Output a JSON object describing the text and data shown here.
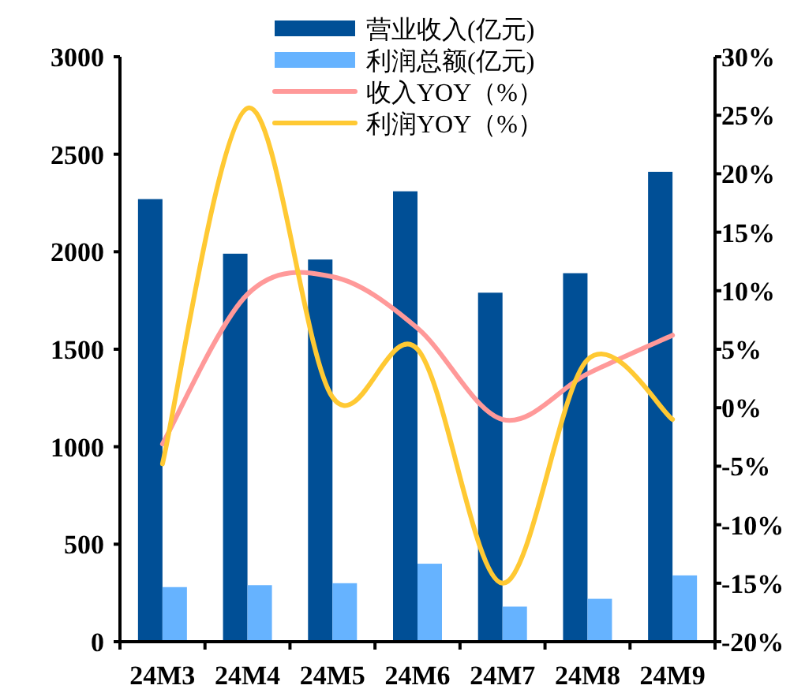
{
  "chart_data": {
    "type": "bar",
    "categories": [
      "24M3",
      "24M4",
      "24M5",
      "24M6",
      "24M7",
      "24M8",
      "24M9"
    ],
    "series": [
      {
        "name": "营业收入(亿元)",
        "color": "#004f96",
        "values": [
          2270,
          1990,
          1960,
          2310,
          1790,
          1890,
          2410
        ]
      },
      {
        "name": "利润总额(亿元)",
        "color": "#66b3ff",
        "values": [
          280,
          290,
          300,
          400,
          180,
          220,
          340
        ]
      },
      {
        "name": "收入YOY（%）",
        "type": "line",
        "axis": "y2",
        "color": "#ff9999",
        "values": [
          -3.1,
          9.7,
          11.2,
          6.8,
          -1.0,
          2.9,
          6.2
        ]
      },
      {
        "name": "利润YOY（%）",
        "type": "line",
        "axis": "y2",
        "color": "#ffc933",
        "values": [
          -4.8,
          25.6,
          0.9,
          5.0,
          -15.0,
          4.1,
          -1.0
        ]
      }
    ],
    "ylim": [
      0,
      3000
    ],
    "yticks": [
      0,
      500,
      1000,
      1500,
      2000,
      2500,
      3000
    ],
    "y2lim": [
      -20,
      30
    ],
    "y2ticks": [
      {
        "value": -20,
        "label": "-20%"
      },
      {
        "value": -15,
        "label": "-15%"
      },
      {
        "value": -10,
        "label": "-10%"
      },
      {
        "value": -5,
        "label": "-5%"
      },
      {
        "value": 0,
        "label": "0%"
      },
      {
        "value": 5,
        "label": "5%"
      },
      {
        "value": 10,
        "label": "10%"
      },
      {
        "value": 15,
        "label": "15%"
      },
      {
        "value": 20,
        "label": "20%"
      },
      {
        "value": 25,
        "label": "25%"
      },
      {
        "value": 30,
        "label": "30%"
      }
    ],
    "legend": "top",
    "marker": "none"
  }
}
